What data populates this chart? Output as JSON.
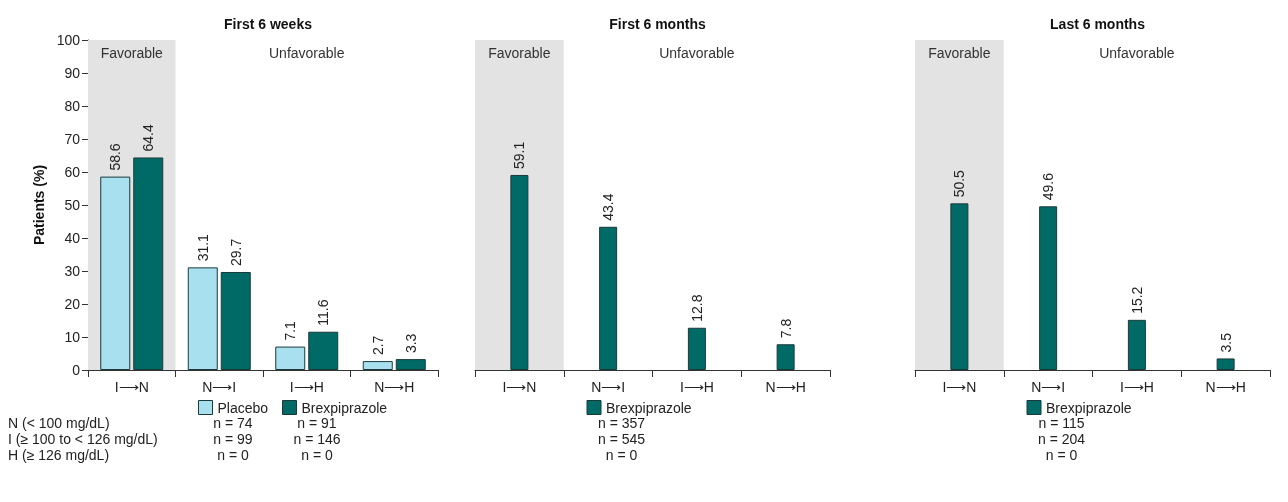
{
  "chart_data": [
    {
      "type": "bar",
      "title": "First 6 weeks",
      "ylabel": "Patients (%)",
      "categories": [
        "I⟶N",
        "N⟶I",
        "I⟶H",
        "N⟶H"
      ],
      "series": [
        {
          "name": "Placebo",
          "color": "#a8e0f0",
          "values": [
            58.6,
            31.1,
            7.1,
            2.7
          ]
        },
        {
          "name": "Brexpiprazole",
          "color": "#006b66",
          "values": [
            64.4,
            29.7,
            11.6,
            3.3
          ]
        }
      ],
      "bands": [
        {
          "axis": "x",
          "from": "I⟶N",
          "to": "I⟶N",
          "label": "Favorable",
          "color": "#e3e3e3"
        }
      ],
      "annotations": [
        "Unfavorable",
        "N (< 100 mg/dL)\nI (≥ 100 to < 126 mg/dL)\nH (≥ 126 mg/dL)",
        "n = 74\nn = 99\nn = 0",
        "n = 91\nn = 146\nn = 0"
      ],
      "ylim": [
        0,
        100
      ],
      "yticks": [
        0,
        10,
        20,
        30,
        40,
        50,
        60,
        70,
        80,
        90,
        100
      ],
      "data_labels": true,
      "legend": "bottom",
      "grid": false
    },
    {
      "type": "bar",
      "title": "First 6 months",
      "categories": [
        "I⟶N",
        "N⟶I",
        "I⟶H",
        "N⟶H"
      ],
      "series": [
        {
          "name": "Brexpiprazole",
          "color": "#006b66",
          "values": [
            59.1,
            43.4,
            12.8,
            7.8
          ]
        }
      ],
      "bands": [
        {
          "axis": "x",
          "from": "I⟶N",
          "to": "I⟶N",
          "label": "Favorable",
          "color": "#e3e3e3"
        }
      ],
      "annotations": [
        "Unfavorable",
        "n = 357\nn = 545\nn = 0"
      ],
      "ylim": [
        0,
        100
      ],
      "tick_labels": "x",
      "data_labels": true,
      "legend": "bottom",
      "grid": false
    },
    {
      "type": "bar",
      "title": "Last 6 months",
      "categories": [
        "I⟶N",
        "N⟶I",
        "I⟶H",
        "N⟶H"
      ],
      "series": [
        {
          "name": "Brexpiprazole",
          "color": "#006b66",
          "values": [
            50.5,
            49.6,
            15.2,
            3.5
          ]
        }
      ],
      "bands": [
        {
          "axis": "x",
          "from": "I⟶N",
          "to": "I⟶N",
          "label": "Favorable",
          "color": "#e3e3e3"
        }
      ],
      "annotations": [
        "Unfavorable",
        "n = 115\nn = 204\nn = 0"
      ],
      "ylim": [
        0,
        100
      ],
      "tick_labels": "x",
      "data_labels": true,
      "legend": "bottom",
      "grid": false
    }
  ]
}
